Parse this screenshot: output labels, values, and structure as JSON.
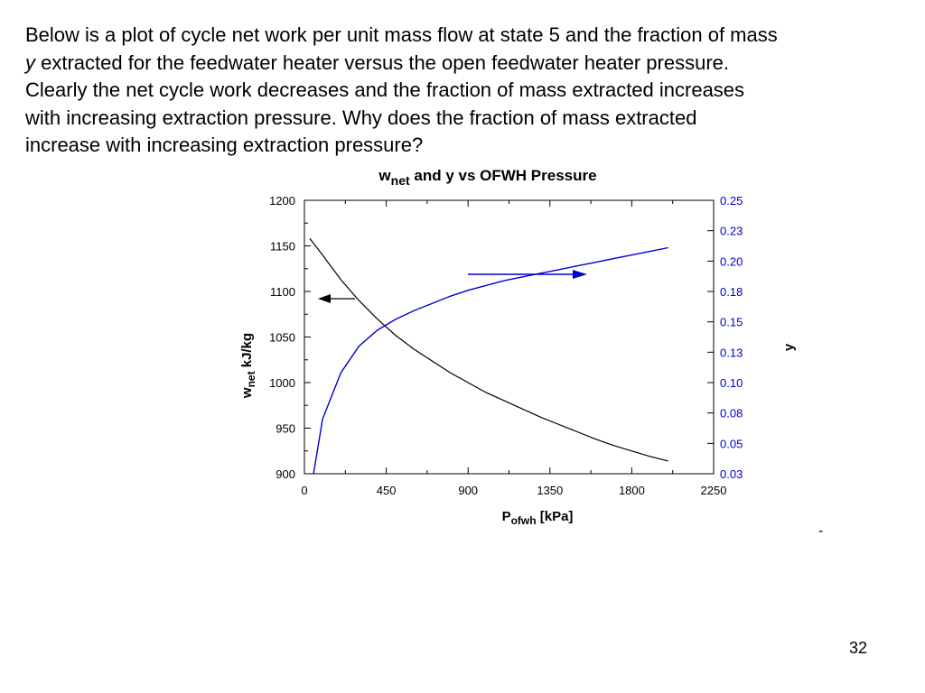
{
  "intro": {
    "line1": "Below is a plot of cycle net work per unit mass flow at state 5 and the fraction of mass",
    "line2_italic": "y",
    "line2_rest": " extracted for the feedwater heater versus the open feedwater heater pressure.",
    "line3": "Clearly the net cycle work decreases and the fraction of mass extracted increases",
    "line4": "with increasing extraction pressure.  Why does the fraction of mass extracted",
    "line5": "increase with increasing extraction pressure?"
  },
  "colors": {
    "wnet_curve": "#000000",
    "y_curve": "#0000cc",
    "right_axis_labels": "#0000cc"
  },
  "chart_data": {
    "type": "line",
    "title": {
      "main": "w",
      "sub": "net",
      "rest": " and y vs OFWH Pressure"
    },
    "xlabel": {
      "main": "P",
      "sub": "ofwh",
      "rest": "  [kPa]"
    },
    "ylabel_left": {
      "main": "w",
      "sub": "net",
      "rest": "  kJ/kg"
    },
    "ylabel_right": "y",
    "xlim": [
      0,
      2250
    ],
    "ylim_left": [
      900,
      1200
    ],
    "ylim_right": [
      0.025,
      0.25
    ],
    "x_ticks": [
      "0",
      "450",
      "900",
      "1350",
      "1800",
      "2250"
    ],
    "y_left_ticks": [
      "1200",
      "1150",
      "1100",
      "1050",
      "1000",
      "950",
      "900"
    ],
    "y_right_ticks": [
      "0.25",
      "0.23",
      "0.20",
      "0.18",
      "0.15",
      "0.13",
      "0.10",
      "0.08",
      "0.05",
      "0.03"
    ],
    "grid": false,
    "legend": "none",
    "series": [
      {
        "axis": "left",
        "x": [
          30,
          100,
          200,
          300,
          400,
          500,
          600,
          700,
          800,
          900,
          1000,
          1100,
          1200,
          1300,
          1400,
          1500,
          1600,
          1700,
          1800,
          1900,
          2000
        ],
        "values": [
          1158,
          1140,
          1113,
          1090,
          1070,
          1052,
          1037,
          1024,
          1011,
          1000,
          989,
          980,
          971,
          962,
          954,
          946,
          938,
          931,
          925,
          919,
          914
        ]
      },
      {
        "axis": "right",
        "x": [
          50,
          100,
          200,
          300,
          400,
          500,
          600,
          700,
          800,
          900,
          1000,
          1100,
          1200,
          1300,
          1400,
          1500,
          1600,
          1700,
          1800,
          1900,
          2000
        ],
        "values": [
          0.025,
          0.07,
          0.108,
          0.13,
          0.143,
          0.152,
          0.159,
          0.165,
          0.171,
          0.176,
          0.18,
          0.184,
          0.187,
          0.19,
          0.193,
          0.196,
          0.199,
          0.202,
          0.205,
          0.208,
          0.211
        ]
      }
    ]
  },
  "dash_text": "-",
  "page_number": "32"
}
